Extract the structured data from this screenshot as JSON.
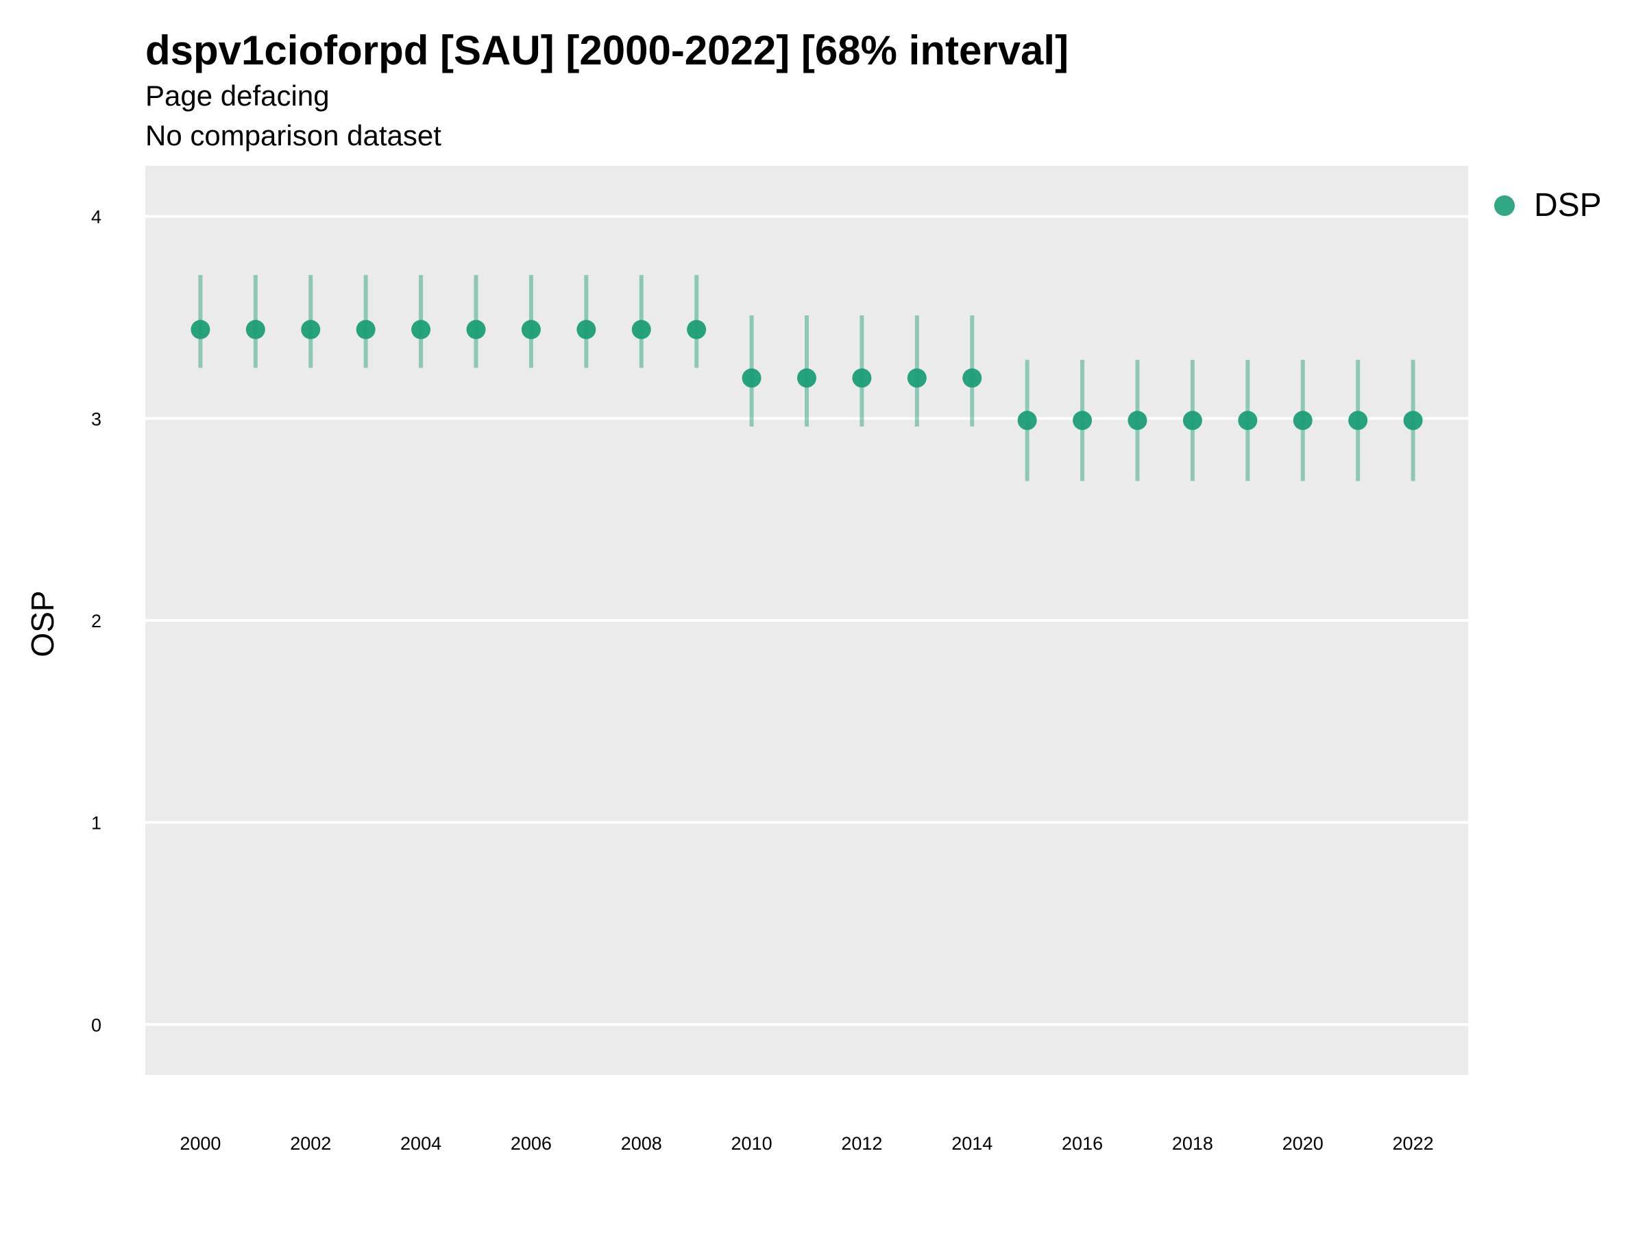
{
  "chart_data": {
    "type": "scatter",
    "title": "dspv1cioforpd [SAU] [2000-2022] [68% interval]",
    "subtitle": [
      "Page defacing",
      "No comparison dataset"
    ],
    "xlabel": "",
    "ylabel": "OSP",
    "xlim": [
      1999,
      2023
    ],
    "ylim": [
      -0.25,
      4.25
    ],
    "x_ticks": [
      "2000",
      "2002",
      "2004",
      "2006",
      "2008",
      "2010",
      "2012",
      "2014",
      "2016",
      "2018",
      "2020",
      "2022"
    ],
    "y_ticks": [
      "0",
      "1",
      "2",
      "3",
      "4"
    ],
    "grid": true,
    "legend_position": "right",
    "series": [
      {
        "name": "DSP",
        "color": "#1b9e77",
        "x": [
          2000,
          2001,
          2002,
          2003,
          2004,
          2005,
          2006,
          2007,
          2008,
          2009,
          2010,
          2011,
          2012,
          2013,
          2014,
          2015,
          2016,
          2017,
          2018,
          2019,
          2020,
          2021,
          2022
        ],
        "y": [
          3.44,
          3.44,
          3.44,
          3.44,
          3.44,
          3.44,
          3.44,
          3.44,
          3.44,
          3.44,
          3.2,
          3.2,
          3.2,
          3.2,
          3.2,
          2.99,
          2.99,
          2.99,
          2.99,
          2.99,
          2.99,
          2.99,
          2.99
        ],
        "lower": [
          3.25,
          3.25,
          3.25,
          3.25,
          3.25,
          3.25,
          3.25,
          3.25,
          3.25,
          3.25,
          2.96,
          2.96,
          2.96,
          2.96,
          2.96,
          2.69,
          2.69,
          2.69,
          2.69,
          2.69,
          2.69,
          2.69,
          2.69
        ],
        "upper": [
          3.71,
          3.71,
          3.71,
          3.71,
          3.71,
          3.71,
          3.71,
          3.71,
          3.71,
          3.71,
          3.51,
          3.51,
          3.51,
          3.51,
          3.51,
          3.29,
          3.29,
          3.29,
          3.29,
          3.29,
          3.29,
          3.29,
          3.29
        ]
      }
    ]
  },
  "legend": {
    "items": [
      {
        "label": "DSP",
        "color": "#1b9e77"
      }
    ]
  }
}
